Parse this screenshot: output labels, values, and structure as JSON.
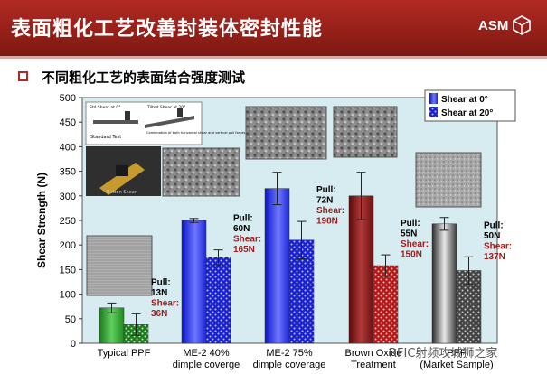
{
  "header": {
    "title": "表面粗化工艺改善封装体密封性能",
    "logo": "ASM"
  },
  "subheading": "不同粗化工艺的表面结合强度测试",
  "colors": {
    "header_red": "#9c221b",
    "bullet_border": "#b12a23",
    "shear_label": "#9c1c1c",
    "plot_bg": "#d6ecf0"
  },
  "chart_data": {
    "type": "bar",
    "ylabel": "Shear Strength (N)",
    "ylim": [
      0,
      500
    ],
    "yticks": [
      0,
      50,
      100,
      150,
      200,
      250,
      300,
      350,
      400,
      450,
      500
    ],
    "categories": [
      [
        "Typical PPF"
      ],
      [
        "ME-2 40%",
        "dimple coverge"
      ],
      [
        "ME-2 75%",
        "dimple coverage"
      ],
      [
        "Brown Oxide",
        "Treatment"
      ],
      [
        "PPF",
        "(Market Sample)"
      ]
    ],
    "series": [
      {
        "name": "Shear at 0°",
        "values": [
          72,
          250,
          315,
          300,
          243
        ],
        "errors": [
          10,
          4,
          33,
          48,
          13
        ]
      },
      {
        "name": "Shear at 20°",
        "values": [
          38,
          175,
          210,
          158,
          148
        ],
        "errors": [
          22,
          15,
          38,
          22,
          28
        ]
      }
    ],
    "annotations": [
      {
        "pull": [
          "Pull:",
          "13N"
        ],
        "shear": [
          "Shear:",
          "36N"
        ]
      },
      {
        "pull": [
          "Pull:",
          "60N"
        ],
        "shear": [
          "Shear:",
          "165N"
        ]
      },
      {
        "pull": [
          "Pull:",
          "72N"
        ],
        "shear": [
          "Shear:",
          "198N"
        ]
      },
      {
        "pull": [
          "Pull:",
          "55N"
        ],
        "shear": [
          "Shear:",
          "150N"
        ]
      },
      {
        "pull": [
          "Pull:",
          "50N"
        ],
        "shear": [
          "Shear:",
          "137N"
        ]
      }
    ],
    "inset_labels": [
      "Std Shear at 0°",
      "Tilted Shear at 20°",
      "Standard Test",
      "Combination of both horizontal shear and vertical pull forces",
      "Button Shear"
    ],
    "legend_position": "top-right",
    "grid": false
  },
  "watermark": "RFIC射频攻城狮之家"
}
